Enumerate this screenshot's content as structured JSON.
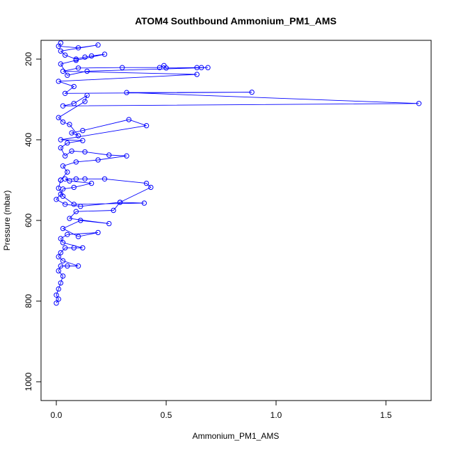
{
  "chart_data": {
    "type": "line",
    "title": "ATOM4 Southbound Ammonium_PM1_AMS",
    "xlabel": "Ammonium_PM1_AMS",
    "ylabel": "Pressure (mbar)",
    "xlim": [
      -0.08,
      1.71
    ],
    "ylim": [
      1040,
      160
    ],
    "y_reversed": true,
    "x_ticks": [
      0.0,
      0.5,
      1.0,
      1.5
    ],
    "x_tick_labels": [
      "0.0",
      "0.5",
      "1.0",
      "1.5"
    ],
    "y_ticks": [
      200,
      400,
      600,
      800,
      1000
    ],
    "y_tick_labels": [
      "200",
      "400",
      "600",
      "800",
      "1000"
    ],
    "grid": false,
    "legend": "none",
    "color": "#0000ff",
    "marker": "open-circle",
    "series": [
      {
        "points": [
          [
            0.0,
            805
          ],
          [
            0.01,
            795
          ],
          [
            0.0,
            785
          ],
          [
            0.01,
            770
          ],
          [
            0.02,
            755
          ],
          [
            0.03,
            738
          ],
          [
            0.01,
            725
          ],
          [
            0.02,
            713
          ],
          [
            0.05,
            713
          ],
          [
            0.1,
            713
          ],
          [
            0.03,
            700
          ],
          [
            0.01,
            690
          ],
          [
            0.02,
            680
          ],
          [
            0.04,
            668
          ],
          [
            0.08,
            668
          ],
          [
            0.12,
            668
          ],
          [
            0.03,
            655
          ],
          [
            0.02,
            645
          ],
          [
            0.05,
            635
          ],
          [
            0.19,
            630
          ],
          [
            0.1,
            640
          ],
          [
            0.03,
            620
          ],
          [
            0.11,
            600
          ],
          [
            0.24,
            608
          ],
          [
            0.06,
            595
          ],
          [
            0.09,
            578
          ],
          [
            0.26,
            575
          ],
          [
            0.29,
            555
          ],
          [
            0.11,
            565
          ],
          [
            0.04,
            560
          ],
          [
            0.0,
            548
          ],
          [
            0.02,
            535
          ],
          [
            0.03,
            522
          ],
          [
            0.08,
            518
          ],
          [
            0.16,
            508
          ],
          [
            0.06,
            502
          ],
          [
            0.04,
            497
          ],
          [
            0.09,
            497
          ],
          [
            0.13,
            497
          ],
          [
            0.22,
            497
          ],
          [
            0.41,
            508
          ],
          [
            0.43,
            518
          ],
          [
            0.29,
            555
          ],
          [
            0.4,
            557
          ],
          [
            0.08,
            560
          ],
          [
            0.03,
            540
          ],
          [
            0.01,
            520
          ],
          [
            0.02,
            500
          ]
        ]
      },
      {
        "points": [
          [
            0.02,
            500
          ],
          [
            0.05,
            480
          ],
          [
            0.03,
            465
          ],
          [
            0.09,
            455
          ],
          [
            0.19,
            450
          ],
          [
            0.32,
            440
          ],
          [
            0.24,
            438
          ],
          [
            0.13,
            430
          ],
          [
            0.07,
            428
          ],
          [
            0.04,
            440
          ],
          [
            0.02,
            420
          ],
          [
            0.05,
            408
          ],
          [
            0.12,
            402
          ],
          [
            0.02,
            400
          ],
          [
            0.41,
            365
          ],
          [
            0.33,
            350
          ],
          [
            0.12,
            377
          ],
          [
            0.07,
            383
          ],
          [
            0.1,
            390
          ],
          [
            0.06,
            362
          ],
          [
            0.03,
            356
          ],
          [
            0.01,
            345
          ],
          [
            0.13,
            305
          ],
          [
            0.14,
            290
          ],
          [
            0.08,
            310
          ],
          [
            0.03,
            316
          ],
          [
            1.65,
            310
          ],
          [
            0.32,
            283
          ],
          [
            0.89,
            282
          ],
          [
            0.04,
            285
          ],
          [
            0.08,
            268
          ],
          [
            0.01,
            255
          ],
          [
            0.64,
            238
          ],
          [
            0.03,
            230
          ],
          [
            0.1,
            222
          ],
          [
            0.3,
            221
          ],
          [
            0.47,
            221
          ],
          [
            0.49,
            216
          ],
          [
            0.5,
            222
          ],
          [
            0.64,
            221
          ],
          [
            0.66,
            221
          ],
          [
            0.69,
            221
          ],
          [
            0.14,
            230
          ],
          [
            0.05,
            240
          ],
          [
            0.02,
            212
          ],
          [
            0.09,
            203
          ],
          [
            0.22,
            188
          ],
          [
            0.16,
            192
          ],
          [
            0.13,
            195
          ],
          [
            0.09,
            200
          ],
          [
            0.04,
            190
          ],
          [
            0.02,
            180
          ],
          [
            0.19,
            165
          ],
          [
            0.1,
            172
          ],
          [
            0.01,
            168
          ],
          [
            0.02,
            160
          ]
        ]
      }
    ]
  }
}
